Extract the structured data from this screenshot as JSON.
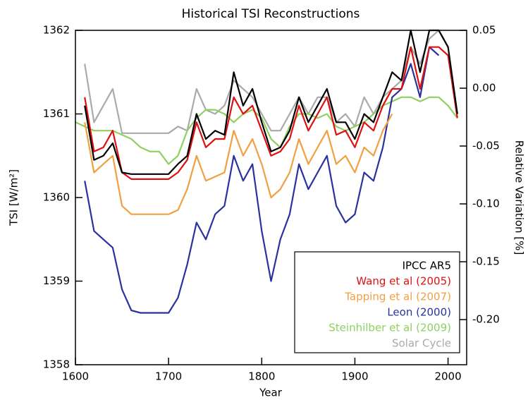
{
  "chart_data": {
    "type": "line",
    "title": "Historical TSI Reconstructions",
    "x_label": "Year",
    "y_label": "TSI [W/m²]",
    "y2_label": "Relative Variation [%]",
    "x": [
      1600,
      1610,
      1620,
      1630,
      1640,
      1650,
      1660,
      1670,
      1680,
      1690,
      1700,
      1710,
      1720,
      1730,
      1740,
      1750,
      1760,
      1770,
      1780,
      1790,
      1800,
      1810,
      1820,
      1830,
      1840,
      1850,
      1860,
      1870,
      1880,
      1890,
      1900,
      1910,
      1920,
      1930,
      1940,
      1950,
      1960,
      1970,
      1980,
      1990,
      2000,
      2010
    ],
    "xlim": [
      1600,
      2020
    ],
    "xticks": [
      1600,
      1700,
      1800,
      1900,
      2000
    ],
    "ylim": [
      1358,
      1362
    ],
    "yticks": [
      1358,
      1359,
      1360,
      1361,
      1362
    ],
    "y2lim": [
      -0.239,
      0.05
    ],
    "y2ticks": [
      0.05,
      {
        "value": 0,
        "label": "0.00"
      },
      -0.05,
      {
        "value": -0.1,
        "label": "-0.10"
      },
      -0.15,
      {
        "value": -0.2,
        "label": "-0.20"
      }
    ],
    "series": [
      {
        "name": "IPCC AR5",
        "color": "#000000",
        "values": [
          null,
          1361.1,
          1360.45,
          1360.5,
          1360.65,
          1360.3,
          1360.28,
          1360.28,
          1360.28,
          1360.28,
          1360.28,
          1360.4,
          1360.5,
          1361.0,
          1360.7,
          1360.8,
          1360.75,
          1361.5,
          1361.1,
          1361.3,
          1360.9,
          1360.55,
          1360.6,
          1360.8,
          1361.2,
          1360.9,
          1361.1,
          1361.3,
          1360.9,
          1360.9,
          1360.7,
          1361.0,
          1360.9,
          1361.2,
          1361.5,
          1361.4,
          1362.0,
          1361.5,
          1362.0,
          1362.0,
          1361.8,
          1361.0
        ]
      },
      {
        "name": "Wang et al (2005)",
        "color": "#dd1111",
        "values": [
          null,
          1361.2,
          1360.55,
          1360.6,
          1360.8,
          1360.3,
          1360.22,
          1360.22,
          1360.22,
          1360.22,
          1360.22,
          1360.3,
          1360.45,
          1360.9,
          1360.6,
          1360.7,
          1360.7,
          1361.2,
          1361.0,
          1361.1,
          1360.8,
          1360.5,
          1360.55,
          1360.7,
          1361.1,
          1360.8,
          1361.0,
          1361.2,
          1360.75,
          1360.8,
          1360.6,
          1360.9,
          1360.8,
          1361.1,
          1361.3,
          1361.3,
          1361.8,
          1361.3,
          1361.8,
          1361.8,
          1361.7,
          1360.95
        ]
      },
      {
        "name": "Tapping et al (2007)",
        "color": "#f0a040",
        "values": [
          null,
          1360.9,
          1360.3,
          1360.4,
          1360.5,
          1359.9,
          1359.8,
          1359.8,
          1359.8,
          1359.8,
          1359.8,
          1359.85,
          1360.1,
          1360.5,
          1360.2,
          1360.25,
          1360.3,
          1360.8,
          1360.5,
          1360.7,
          1360.4,
          1360.0,
          1360.1,
          1360.3,
          1360.7,
          1360.4,
          1360.6,
          1360.8,
          1360.4,
          1360.5,
          1360.3,
          1360.6,
          1360.5,
          1360.8,
          1361.0,
          null,
          null,
          null,
          null,
          null,
          null,
          null
        ]
      },
      {
        "name": "Leon (2000)",
        "color": "#2a32a0",
        "values": [
          null,
          1360.2,
          1359.6,
          1359.5,
          1359.4,
          1358.9,
          1358.65,
          1358.62,
          1358.62,
          1358.62,
          1358.62,
          1358.8,
          1359.2,
          1359.7,
          1359.5,
          1359.8,
          1359.9,
          1360.5,
          1360.2,
          1360.4,
          1359.6,
          1359.0,
          1359.5,
          1359.8,
          1360.4,
          1360.1,
          1360.3,
          1360.5,
          1359.9,
          1359.7,
          1359.8,
          1360.3,
          1360.2,
          1360.6,
          1361.2,
          1361.3,
          1361.6,
          1361.2,
          1361.8,
          1361.7,
          null,
          null
        ]
      },
      {
        "name": "Steinhilber et al (2009)",
        "color": "#8fd060",
        "values": [
          1360.9,
          1360.85,
          1360.8,
          1360.8,
          1360.8,
          1360.75,
          1360.7,
          1360.6,
          1360.55,
          1360.55,
          1360.4,
          1360.5,
          1360.8,
          1360.95,
          1361.05,
          1361.05,
          1361.0,
          1360.9,
          1361.0,
          1361.05,
          1360.95,
          1360.7,
          1360.6,
          1360.85,
          1361.0,
          1361.0,
          1360.95,
          1361.0,
          1360.85,
          1360.8,
          1360.85,
          1360.9,
          1361.0,
          1361.1,
          1361.15,
          1361.2,
          1361.2,
          1361.15,
          1361.2,
          1361.2,
          1361.1,
          1360.95
        ]
      },
      {
        "name": "Solar Cycle",
        "color": "#aaaaaa",
        "values": [
          null,
          1361.6,
          1360.9,
          1361.1,
          1361.3,
          1360.77,
          1360.77,
          1360.77,
          1360.77,
          1360.77,
          1360.77,
          1360.85,
          1360.8,
          1361.3,
          1361.05,
          1361.0,
          1361.1,
          1361.4,
          1361.3,
          1361.2,
          1361.0,
          1360.8,
          1360.8,
          1361.0,
          1361.2,
          1361.0,
          1361.2,
          1361.2,
          1360.9,
          1361.0,
          1360.85,
          1361.2,
          1361.0,
          1361.2,
          1361.3,
          1361.4,
          1361.8,
          1361.6,
          1361.9,
          1362.0,
          1361.8,
          null
        ]
      }
    ]
  }
}
